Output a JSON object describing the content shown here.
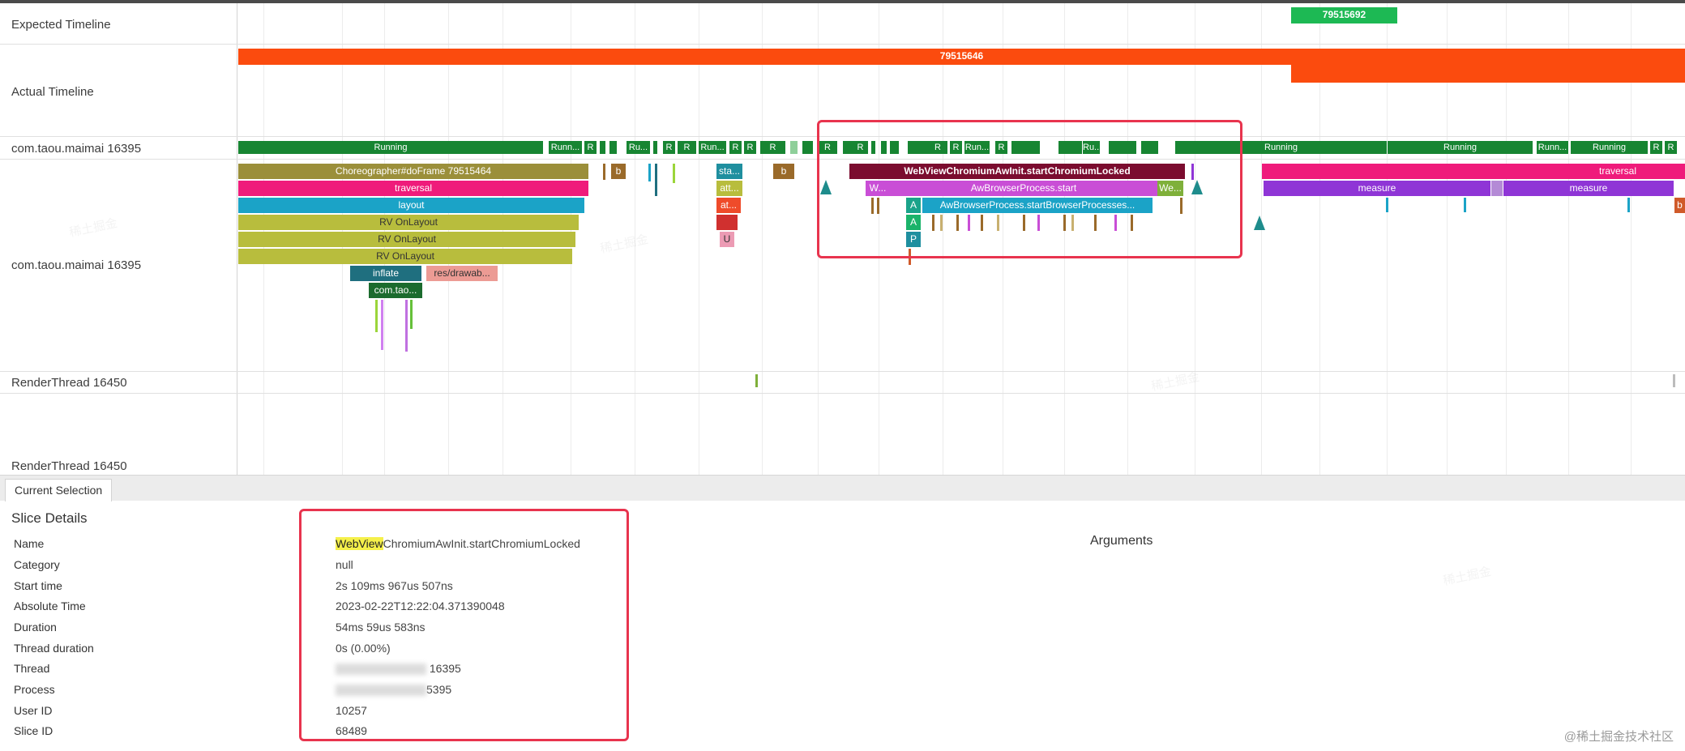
{
  "tracks": {
    "expected": "Expected Timeline",
    "actual": "Actual Timeline",
    "proc_state": "com.taou.maimai 16395",
    "main_thread": "com.taou.maimai 16395",
    "render_1": "RenderThread 16450",
    "render_2": "RenderThread 16450"
  },
  "frames": {
    "expected_id": "79515692",
    "actual_id": "79515646"
  },
  "states": {
    "running": "Running",
    "run_short": "Runn...",
    "ru_short": "Ru...",
    "r": "R",
    "run_mid": "Run..."
  },
  "slices": {
    "choreographer": "Choreographer#doFrame 79515464",
    "traversal": "traversal",
    "layout": "layout",
    "rv1": "RV OnLayout",
    "rv2": "RV OnLayout",
    "rv3": "RV OnLayout",
    "inflate": "inflate",
    "res": "res/drawab...",
    "com_tao": "com.tao...",
    "b1": "b",
    "b2": "b",
    "sta": "sta...",
    "att": "att...",
    "at": "at...",
    "u": "U",
    "webview": "WebViewChromiumAwInit.startChromiumLocked",
    "w_left": "W...",
    "aw_start": "AwBrowserProcess.start",
    "we_right": "We...",
    "a1": "A",
    "aw_processes": "AwBrowserProcess.startBrowserProcesses...",
    "a2": "A",
    "p": "P",
    "traversal_right": "traversal",
    "measure1": "measure",
    "measure2": "measure",
    "b_right": "b"
  },
  "colors": {
    "olive": "#9b8f3a",
    "pink": "#ef1b7b",
    "cyan": "#1ba3c7",
    "yellow_green": "#b8bd3d",
    "teal": "#1f6f7f",
    "salmon": "#ec9b94",
    "dark_green": "#1b6b2e",
    "maroon": "#7b0c2f",
    "magenta": "#c94ed6",
    "purple": "#8f35d6",
    "green_state": "#178532",
    "orange_red": "#fb4b0e",
    "expected_green": "#1db954",
    "highlight": "#f5f04a",
    "red_box": "#e8344e"
  },
  "tab": {
    "current_selection": "Current Selection"
  },
  "details": {
    "title": "Slice Details",
    "arguments_title": "Arguments",
    "rows": [
      {
        "key": "Name",
        "value_prefix": "WebView",
        "value_rest": "ChromiumAwInit.startChromiumLocked"
      },
      {
        "key": "Category",
        "value": "null"
      },
      {
        "key": "Start time",
        "value": "2s 109ms 967us 507ns"
      },
      {
        "key": "Absolute Time",
        "value": "2023-02-22T12:22:04.371390048"
      },
      {
        "key": "Duration",
        "value": "54ms 59us 583ns"
      },
      {
        "key": "Thread duration",
        "value": "0s (0.00%)"
      },
      {
        "key": "Thread",
        "value": "16395"
      },
      {
        "key": "Process",
        "value": "5395"
      },
      {
        "key": "User ID",
        "value": "10257"
      },
      {
        "key": "Slice ID",
        "value": "68489"
      }
    ]
  },
  "watermark": {
    "footer": "@稀土掘金技术社区"
  }
}
